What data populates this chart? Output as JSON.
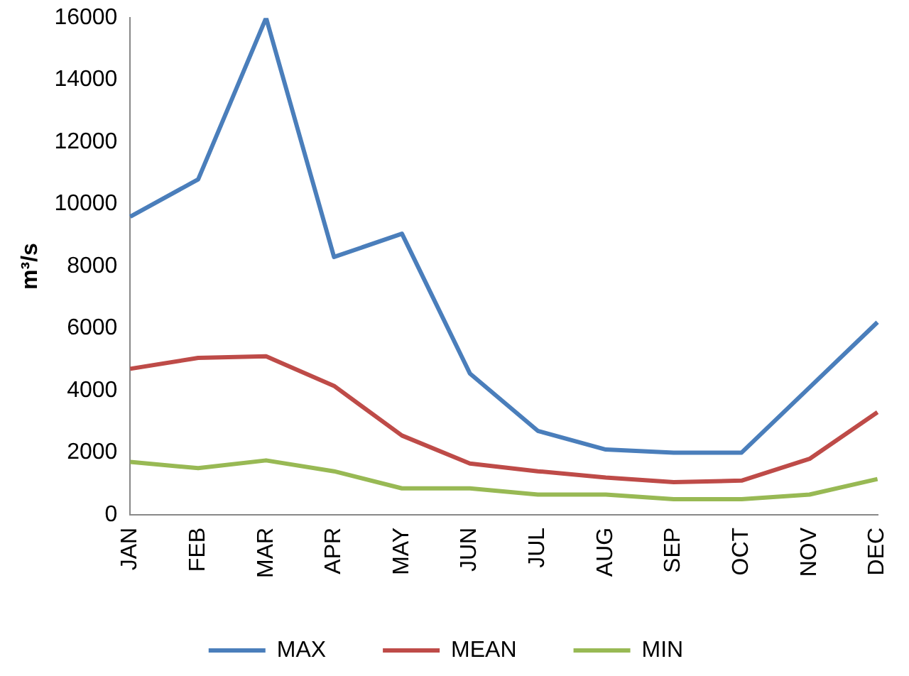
{
  "chart_data": {
    "type": "line",
    "ylabel": "m³/s",
    "categories": [
      "JAN",
      "FEB",
      "MAR",
      "APR",
      "MAY",
      "JUN",
      "JUL",
      "AUG",
      "SEP",
      "OCT",
      "NOV",
      "DEC"
    ],
    "series": [
      {
        "name": "MAX",
        "color": "#4a7ebb",
        "values": [
          9600,
          10800,
          16000,
          8300,
          9050,
          4550,
          2700,
          2100,
          2000,
          2000,
          4100,
          6200
        ]
      },
      {
        "name": "MEAN",
        "color": "#be4b48",
        "values": [
          4700,
          5050,
          5100,
          4150,
          2550,
          1650,
          1400,
          1200,
          1050,
          1100,
          1800,
          3300
        ]
      },
      {
        "name": "MIN",
        "color": "#98b954",
        "values": [
          1700,
          1500,
          1750,
          1400,
          850,
          850,
          650,
          650,
          500,
          500,
          650,
          1150
        ]
      }
    ],
    "ylim": [
      0,
      16000
    ],
    "yticks": [
      0,
      2000,
      4000,
      6000,
      8000,
      10000,
      12000,
      14000,
      16000
    ],
    "grid": false,
    "legend": "bottom",
    "marker": "none",
    "line_style": "solid"
  }
}
